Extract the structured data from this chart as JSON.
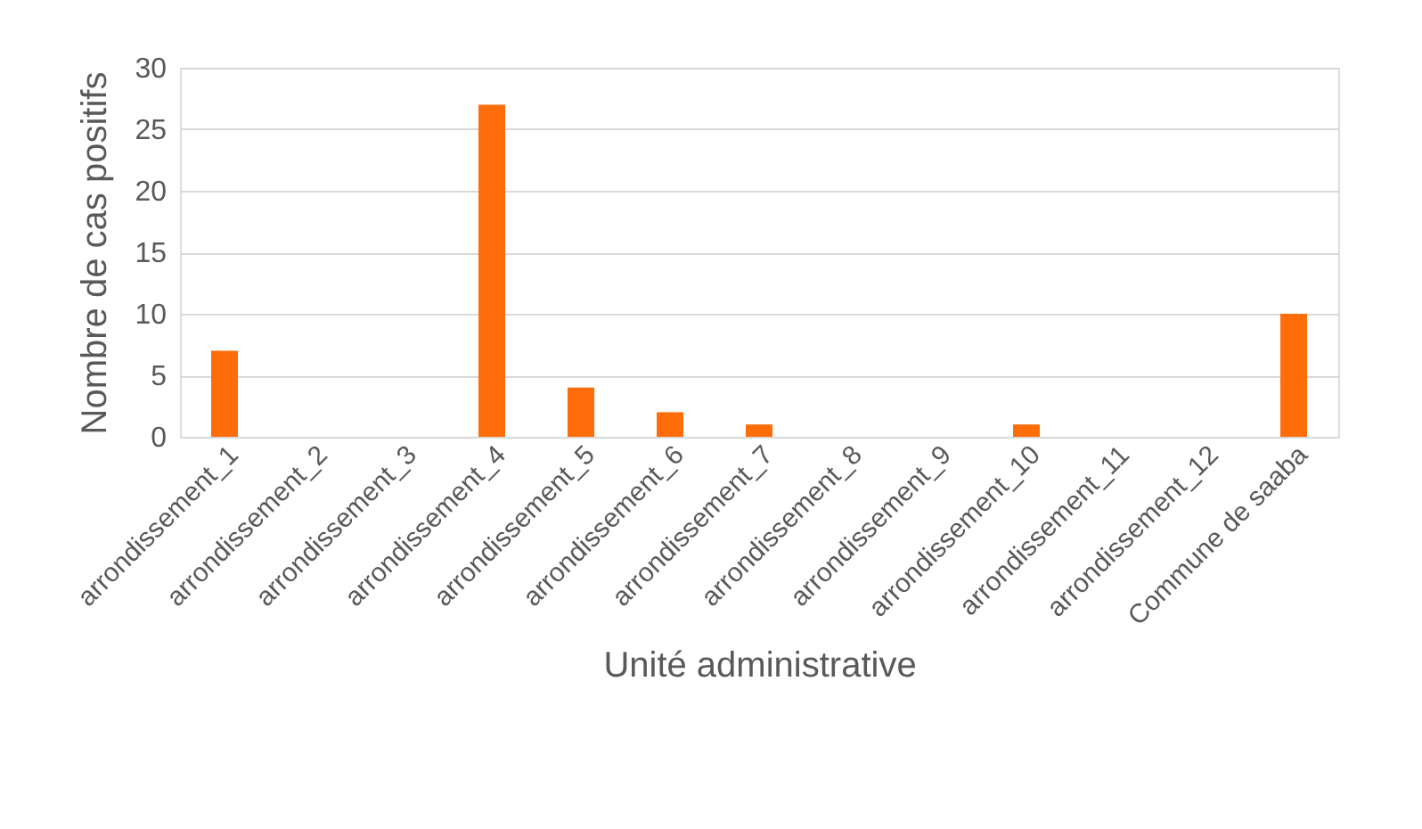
{
  "chart_data": {
    "type": "bar",
    "categories": [
      "arrondissement_1",
      "arrondissement_2",
      "arrondissement_3",
      "arrondissement_4",
      "arrondissement_5",
      "arrondissement_6",
      "arrondissement_7",
      "arrondissement_8",
      "arrondissement_9",
      "arrondissement_10",
      "arrondissement_11",
      "arrondissement_12",
      "Commune de saaba"
    ],
    "values": [
      7,
      0,
      0,
      27,
      4,
      2,
      1,
      0,
      0,
      1,
      0,
      0,
      10
    ],
    "color": "#ff6d0a",
    "xlabel": "Unité administrative",
    "ylabel": "Nombre de cas positifs",
    "ylim": [
      0,
      30
    ],
    "yticks": [
      0,
      5,
      10,
      15,
      20,
      25,
      30
    ],
    "grid": "y"
  }
}
